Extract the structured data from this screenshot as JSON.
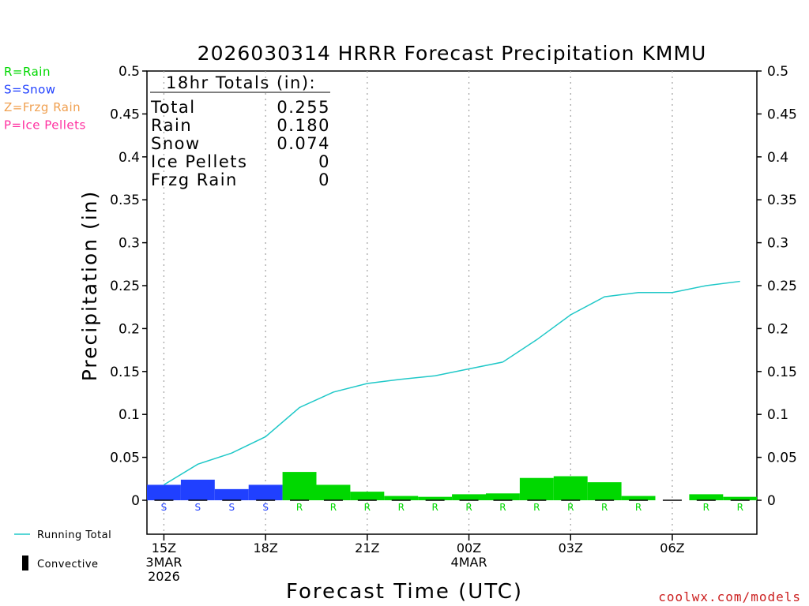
{
  "chart_data": {
    "type": "bar",
    "title": "2026030314 HRRR Forecast Precipitation KMMU",
    "xlabel": "Forecast Time (UTC)",
    "ylabel": "Precipitation (in)",
    "ylim": [
      0,
      0.5
    ],
    "yticks": [
      "0",
      "0.05",
      "0.1",
      "0.15",
      "0.2",
      "0.25",
      "0.3",
      "0.35",
      "0.4",
      "0.45",
      "0.5"
    ],
    "xticks": [
      {
        "hour": 15,
        "line1": "15Z",
        "line2": "3MAR",
        "line3": "2026"
      },
      {
        "hour": 18,
        "line1": "18Z",
        "line2": "",
        "line3": ""
      },
      {
        "hour": 21,
        "line1": "21Z",
        "line2": "",
        "line3": ""
      },
      {
        "hour": 24,
        "line1": "00Z",
        "line2": "4MAR",
        "line3": ""
      },
      {
        "hour": 27,
        "line1": "03Z",
        "line2": "",
        "line3": ""
      },
      {
        "hour": 30,
        "line1": "06Z",
        "line2": "",
        "line3": ""
      }
    ],
    "hourly": [
      {
        "hour": 15,
        "type": "S",
        "value": 0.018
      },
      {
        "hour": 16,
        "type": "S",
        "value": 0.024
      },
      {
        "hour": 17,
        "type": "S",
        "value": 0.013
      },
      {
        "hour": 18,
        "type": "S",
        "value": 0.018
      },
      {
        "hour": 19,
        "type": "R",
        "value": 0.033
      },
      {
        "hour": 20,
        "type": "R",
        "value": 0.018
      },
      {
        "hour": 21,
        "type": "R",
        "value": 0.01
      },
      {
        "hour": 22,
        "type": "R",
        "value": 0.005
      },
      {
        "hour": 23,
        "type": "R",
        "value": 0.004
      },
      {
        "hour": 24,
        "type": "R",
        "value": 0.007
      },
      {
        "hour": 25,
        "type": "R",
        "value": 0.008
      },
      {
        "hour": 26,
        "type": "R",
        "value": 0.026
      },
      {
        "hour": 27,
        "type": "R",
        "value": 0.028
      },
      {
        "hour": 28,
        "type": "R",
        "value": 0.021
      },
      {
        "hour": 29,
        "type": "R",
        "value": 0.005
      },
      {
        "hour": 30,
        "type": "",
        "value": 0.0
      },
      {
        "hour": 31,
        "type": "R",
        "value": 0.007
      },
      {
        "hour": 32,
        "type": "R",
        "value": 0.004
      }
    ],
    "running_total": {
      "hours": [
        15,
        16,
        17,
        18,
        19,
        20,
        21,
        22,
        23,
        24,
        25,
        26,
        27,
        28,
        29,
        30,
        31,
        32
      ],
      "values": [
        0.018,
        0.042,
        0.055,
        0.074,
        0.108,
        0.126,
        0.136,
        0.141,
        0.145,
        0.153,
        0.161,
        0.187,
        0.216,
        0.237,
        0.242,
        0.242,
        0.25,
        0.255
      ]
    },
    "totals_box": {
      "title": "18hr Totals (in):",
      "rows": [
        {
          "label": "Total",
          "value": "0.255"
        },
        {
          "label": "Rain",
          "value": "0.180"
        },
        {
          "label": "Snow",
          "value": "0.074"
        },
        {
          "label": "Ice Pellets",
          "value": "0"
        },
        {
          "label": "Frzg Rain",
          "value": "0"
        }
      ]
    },
    "type_legend": [
      {
        "text": "R=Rain",
        "color": "#00d800"
      },
      {
        "text": "S=Snow",
        "color": "#2040ff"
      },
      {
        "text": "Z=Frzg Rain",
        "color": "#f0a050"
      },
      {
        "text": "P=Ice Pellets",
        "color": "#ff30a0"
      }
    ],
    "series_legend": [
      {
        "text": "Running Total",
        "color": "#20c8c8"
      },
      {
        "text": "Convective",
        "color": "#000000"
      }
    ],
    "colors": {
      "rain": "#00d800",
      "snow": "#2040ff",
      "running_total": "#20c8c8",
      "grid": "#a0a0a0"
    },
    "credit": "coolwx.com/models",
    "credit_color": "#cc2020"
  }
}
